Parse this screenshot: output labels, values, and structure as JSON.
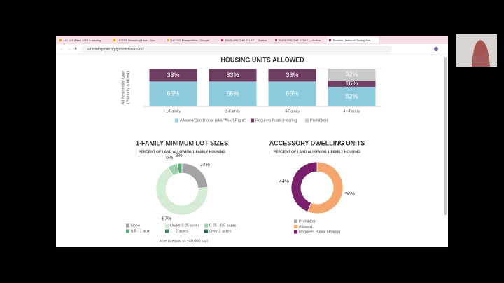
{
  "browser": {
    "tabs": [
      "UC GIS Week 2024 is starting",
      "UC GIS Workshop Heat - Goo",
      "UC GIS Presentation - Google",
      "EXPLORE THE ATLAS — Nation",
      "EXPLORE THE ATLAS — Nation",
      "Boulder | National Zoning Atla"
    ],
    "url": "co.zoningatlas.org/jurisdiction/63392"
  },
  "chart_data": [
    {
      "type": "bar",
      "title": "HOUSING UNITS ALLOWED",
      "y_label": [
        "All Residential Land",
        "(Primarily & Mixed)"
      ],
      "categories": [
        "1-Family",
        "2-Family",
        "3-Family",
        "4+-Family"
      ],
      "series": [
        {
          "name": "Allowed/Conditional (aka \"As-of-Right\")",
          "color": "#8ecadd",
          "values": [
            66,
            66,
            66,
            52
          ],
          "value_labels": [
            "66%",
            "66%",
            "66%",
            "52%"
          ]
        },
        {
          "name": "Requires Public Hearing",
          "color": "#6e3d62",
          "values": [
            33,
            33,
            33,
            16
          ],
          "value_labels": [
            "33%",
            "33%",
            "33%",
            "16%"
          ]
        },
        {
          "name": "Prohibited",
          "color": "#c9c9c9",
          "values": [
            null,
            null,
            null,
            32
          ],
          "value_labels": [
            null,
            null,
            null,
            "32%"
          ]
        }
      ],
      "ylim": [
        0,
        100
      ]
    },
    {
      "type": "pie",
      "title": "1-FAMILY MINIMUM LOT SIZES",
      "subtitle": "PERCENT OF LAND ALLOWING 1-FAMILY HOUSING",
      "categories": [
        "None",
        "Under 0.25 acres",
        "0.25 - 0.5 acres",
        "0.5 - 1 acre",
        "1 - 2 acres",
        "Over 2 acres"
      ],
      "values": [
        24,
        67,
        6,
        3,
        0,
        0
      ],
      "value_labels": [
        "24%",
        "67%",
        "6%",
        "3%",
        null,
        null
      ],
      "colors": [
        "#a3a3a3",
        "#d3ecd3",
        "#9fd2ab",
        "#5ba77c",
        "#3f8a63",
        "#276b4a"
      ],
      "note": "1 acre is equal to ~40,000 sqft"
    },
    {
      "type": "pie",
      "title": "ACCESSORY DWELLING UNITS",
      "subtitle": "PERCENT OF LAND ALLOWING 1-FAMILY HOUSING",
      "categories": [
        "Prohibited",
        "Allowed",
        "Requires Public Hearing"
      ],
      "values": [
        0,
        56,
        44
      ],
      "value_labels": [
        null,
        "56%",
        "44%"
      ],
      "colors": [
        "#a3a3a3",
        "#f5a66c",
        "#7a1f6b"
      ]
    }
  ]
}
